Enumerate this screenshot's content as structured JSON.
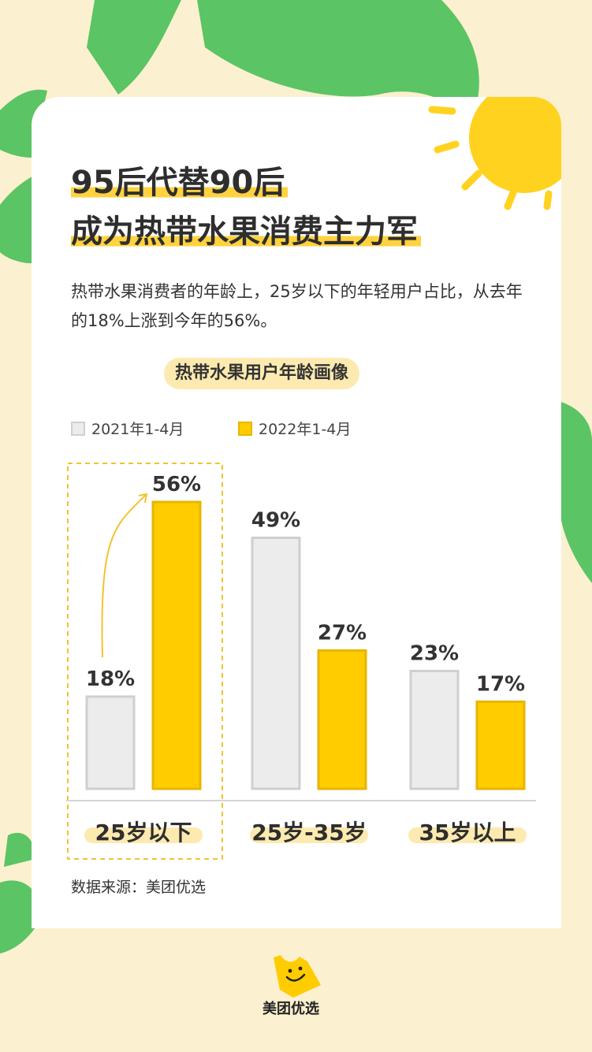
{
  "title": {
    "line1": "95后代替90后",
    "line2": "成为热带水果消费主力军"
  },
  "description": "热带水果消费者的年龄上，25岁以下的年轻用户占比，从去年的18%上涨到今年的56%。",
  "chart_data": {
    "type": "bar",
    "title": "热带水果用户年龄画像",
    "categories": [
      "25岁以下",
      "25岁-35岁",
      "35岁以上"
    ],
    "series": [
      {
        "name": "2021年1-4月",
        "values": [
          18,
          49,
          23
        ],
        "labels": [
          "18%",
          "49%",
          "23%"
        ],
        "color": "#ececec"
      },
      {
        "name": "2022年1-4月",
        "values": [
          56,
          27,
          17
        ],
        "labels": [
          "56%",
          "27%",
          "17%"
        ],
        "color": "#ffcc00"
      }
    ],
    "unit": "%",
    "highlight_category": "25岁以下",
    "ylim": [
      0,
      60
    ],
    "grid": false,
    "legend_position": "top-left"
  },
  "source": "数据来源：美团优选",
  "brand": "美团优选",
  "colors": {
    "background": "#fbf0cf",
    "leaf": "#5bc464",
    "accent": "#ffcc00",
    "sun": "#ffd21f"
  }
}
